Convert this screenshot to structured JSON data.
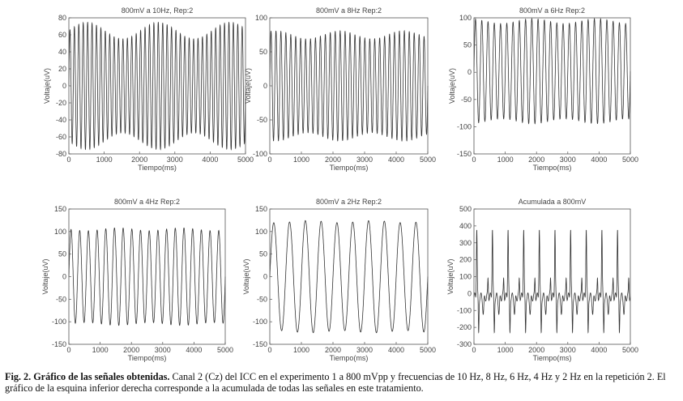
{
  "chart_data": [
    {
      "type": "line",
      "title": "800mV a 10Hz, Rep:2",
      "xlabel": "Tiempo(ms)",
      "ylabel": "Voltaje(uV)",
      "xlim": [
        0,
        5000
      ],
      "ylim": [
        -80,
        80
      ],
      "xticks": [
        0,
        1000,
        2000,
        3000,
        4000,
        5000
      ],
      "yticks": [
        -80,
        -60,
        -40,
        -20,
        0,
        20,
        40,
        60,
        80
      ],
      "signal": {
        "freq_hz": 8,
        "amplitude": 65,
        "offset": 0,
        "wobble": 0.15
      }
    },
    {
      "type": "line",
      "title": "800mV a 8Hz Rep:2",
      "xlabel": "Tiempo(ms)",
      "ylabel": "Voltaje(uV)",
      "xlim": [
        0,
        5000
      ],
      "ylim": [
        -100,
        100
      ],
      "xticks": [
        0,
        1000,
        2000,
        3000,
        4000,
        5000
      ],
      "yticks": [
        -100,
        -50,
        0,
        50,
        100
      ],
      "signal": {
        "freq_hz": 6.4,
        "amplitude": 75,
        "offset": 0,
        "wobble": 0.08
      }
    },
    {
      "type": "line",
      "title": "800mV a 6Hz Rep:2",
      "xlabel": "Tiempo(ms)",
      "ylabel": "Voltaje(uV)",
      "xlim": [
        0,
        5000
      ],
      "ylim": [
        -150,
        100
      ],
      "xticks": [
        0,
        1000,
        2000,
        3000,
        4000,
        5000
      ],
      "yticks": [
        -150,
        -100,
        -50,
        0,
        50,
        100
      ],
      "signal": {
        "freq_hz": 5,
        "amplitude": 92,
        "offset": 2,
        "wobble": 0.05
      }
    },
    {
      "type": "line",
      "title": "800mV a 4Hz Rep:2",
      "xlabel": "Tiempo(ms)",
      "ylabel": "Voltaje(uV)",
      "xlim": [
        0,
        5000
      ],
      "ylim": [
        -150,
        150
      ],
      "xticks": [
        0,
        1000,
        2000,
        3000,
        4000,
        5000
      ],
      "yticks": [
        -150,
        -100,
        -50,
        0,
        50,
        100,
        150
      ],
      "signal": {
        "freq_hz": 3.6,
        "amplitude": 105,
        "offset": 0,
        "wobble": 0.03
      }
    },
    {
      "type": "line",
      "title": "800mV a 2Hz Rep:2",
      "xlabel": "Tiempo(ms)",
      "ylabel": "Voltaje(uV)",
      "xlim": [
        0,
        5000
      ],
      "ylim": [
        -150,
        150
      ],
      "xticks": [
        0,
        1000,
        2000,
        3000,
        4000,
        5000
      ],
      "yticks": [
        -150,
        -100,
        -50,
        0,
        50,
        100,
        150
      ],
      "signal": {
        "freq_hz": 2,
        "amplitude": 122,
        "offset": 0,
        "wobble": 0.02
      }
    },
    {
      "type": "line",
      "title": "Acumulada a 800mV",
      "xlabel": "Tiempo(ms)",
      "ylabel": "Voltaje(uV)",
      "xlim": [
        0,
        5000
      ],
      "ylim": [
        -300,
        500
      ],
      "xticks": [
        0,
        1000,
        2000,
        3000,
        4000,
        5000
      ],
      "yticks": [
        -300,
        -200,
        -100,
        0,
        100,
        200,
        300,
        400,
        500
      ],
      "signal": {
        "freq_hz": 2,
        "amplitude": 410,
        "offset": 0,
        "composite": true,
        "peak_uV": 410,
        "trough_uV": -220
      }
    }
  ],
  "caption": {
    "label": "Fig. 2. Gráfico de las señales obtenidas.",
    "text": " Canal 2 (Cz) del ICC en el experimento 1 a 800 mVpp y frecuencias de 10 Hz, 8 Hz, 6 Hz, 4 Hz y 2 Hz en la repetición 2. El gráfico de la esquina inferior derecha corresponde a la acumulada de todas las señales en este tratamiento."
  }
}
